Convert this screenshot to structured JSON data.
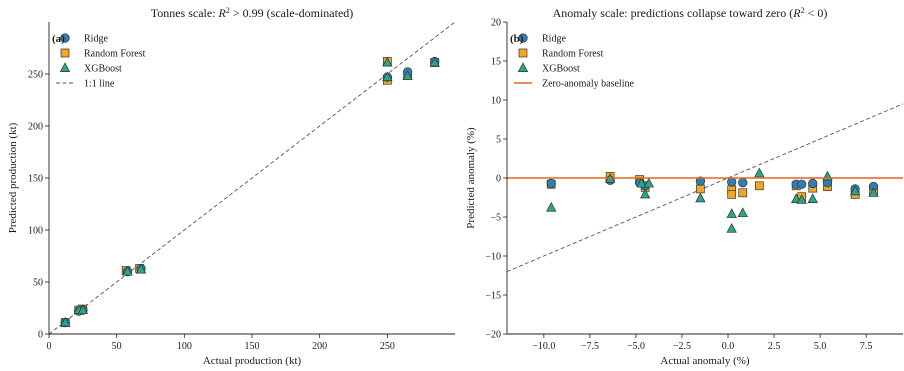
{
  "colors": {
    "ridge": "#2f7fb5",
    "random_forest": "#f0a823",
    "xgboost": "#2aa58a",
    "marker_edge": "#333333",
    "identity_line": "#555555",
    "baseline": "#e8651a",
    "axis": "#222222"
  },
  "chart_data": [
    {
      "type": "scatter",
      "panel_label": "(a)",
      "title_parts": [
        "Tonnes scale: ",
        "R",
        "2",
        " > 0.99",
        " (scale-dominated)"
      ],
      "xlabel": "Actual production (kt)",
      "ylabel": "Predicted production (kt)",
      "xlim": [
        0,
        300
      ],
      "ylim": [
        0,
        300
      ],
      "xticks": [
        0,
        50,
        100,
        150,
        200,
        250
      ],
      "yticks": [
        0,
        50,
        100,
        150,
        200,
        250
      ],
      "xtick_labels": [
        "0",
        "50",
        "100",
        "150",
        "200",
        "250"
      ],
      "ytick_labels": [
        "0",
        "50",
        "100",
        "150",
        "200",
        "250"
      ],
      "legend_position": "upper-left",
      "legend": [
        {
          "label": "Ridge",
          "marker": "circle",
          "color_key": "ridge"
        },
        {
          "label": "Random Forest",
          "marker": "square",
          "color_key": "random_forest"
        },
        {
          "label": "XGBoost",
          "marker": "triangle",
          "color_key": "xgboost"
        },
        {
          "label": "1:1 line",
          "marker": "dashed-line",
          "color_key": "identity_line"
        }
      ],
      "reference_lines": [
        {
          "kind": "identity",
          "style": "dashed"
        }
      ],
      "series": [
        {
          "name": "Ridge",
          "marker": "circle",
          "color_key": "ridge",
          "x": [
            12,
            22,
            25,
            58,
            68,
            250,
            265,
            285
          ],
          "y": [
            11,
            22,
            23,
            60,
            63,
            247,
            252,
            262
          ]
        },
        {
          "name": "Random Forest",
          "marker": "square",
          "color_key": "random_forest",
          "x": [
            12,
            22,
            25,
            57,
            67,
            250,
            250,
            265,
            285
          ],
          "y": [
            11,
            23,
            24,
            61,
            63,
            244,
            262,
            249,
            261
          ]
        },
        {
          "name": "XGBoost",
          "marker": "triangle",
          "color_key": "xgboost",
          "x": [
            12,
            22,
            25,
            58,
            68,
            250,
            250,
            265,
            285
          ],
          "y": [
            11,
            23,
            23,
            60,
            62,
            247,
            261,
            248,
            261
          ]
        }
      ]
    },
    {
      "type": "scatter",
      "panel_label": "(b)",
      "title_parts": [
        "Anomaly scale: predictions collapse toward zero (",
        "R",
        "2",
        " < 0",
        ")"
      ],
      "xlabel": "Actual anomaly (%)",
      "ylabel": "Predicted anomaly (%)",
      "xlim": [
        -12,
        9.5
      ],
      "ylim": [
        -20,
        20
      ],
      "xticks": [
        -10,
        -7.5,
        -5,
        -2.5,
        0,
        2.5,
        5,
        7.5
      ],
      "yticks": [
        -20,
        -15,
        -10,
        -5,
        0,
        5,
        10,
        15,
        20
      ],
      "xtick_labels": [
        "−10.0",
        "−7.5",
        "−5.0",
        "−2.5",
        "0.0",
        "2.5",
        "5.0",
        "7.5"
      ],
      "ytick_labels": [
        "−20",
        "−15",
        "−10",
        "−5",
        "0",
        "5",
        "10",
        "15",
        "20"
      ],
      "legend_position": "upper-left",
      "legend": [
        {
          "label": "Ridge",
          "marker": "circle",
          "color_key": "ridge"
        },
        {
          "label": "Random Forest",
          "marker": "square",
          "color_key": "random_forest"
        },
        {
          "label": "XGBoost",
          "marker": "triangle",
          "color_key": "xgboost"
        },
        {
          "label": "Zero-anomaly baseline",
          "marker": "solid-line",
          "color_key": "baseline"
        }
      ],
      "reference_lines": [
        {
          "kind": "identity",
          "style": "dashed"
        },
        {
          "kind": "horizontal",
          "y": 0,
          "style": "solid",
          "color_key": "baseline"
        }
      ],
      "series": [
        {
          "name": "Ridge",
          "marker": "circle",
          "color_key": "ridge",
          "x": [
            -9.6,
            -6.4,
            -4.8,
            -4.5,
            -1.5,
            0.2,
            0.8,
            3.7,
            4.0,
            4.6,
            5.4,
            6.9,
            7.9
          ],
          "y": [
            -0.7,
            -0.3,
            -0.6,
            -1.0,
            -0.4,
            -0.5,
            -0.6,
            -0.8,
            -0.8,
            -0.7,
            -0.6,
            -1.4,
            -1.1
          ]
        },
        {
          "name": "Random Forest",
          "marker": "square",
          "color_key": "random_forest",
          "x": [
            -9.6,
            -6.4,
            -4.8,
            -4.5,
            -1.5,
            0.2,
            0.2,
            0.8,
            1.7,
            3.7,
            4.0,
            4.6,
            5.4,
            6.9,
            7.9
          ],
          "y": [
            -0.8,
            0.2,
            -0.2,
            -1.2,
            -1.4,
            -1.5,
            -2.1,
            -1.9,
            -1.0,
            -1.0,
            -2.4,
            -1.3,
            -1.1,
            -2.1,
            -1.8
          ]
        },
        {
          "name": "XGBoost",
          "marker": "triangle",
          "color_key": "xgboost",
          "x": [
            -9.6,
            -6.4,
            -4.7,
            -4.5,
            -4.3,
            -1.5,
            0.2,
            0.2,
            0.8,
            1.7,
            3.7,
            4.0,
            4.6,
            5.4,
            6.9,
            7.9
          ],
          "y": [
            -3.8,
            -0.1,
            -0.7,
            -2.1,
            -0.7,
            -2.6,
            -4.6,
            -6.5,
            -4.5,
            0.6,
            -2.7,
            -2.8,
            -2.7,
            0.2,
            -1.7,
            -1.9
          ]
        }
      ]
    }
  ]
}
